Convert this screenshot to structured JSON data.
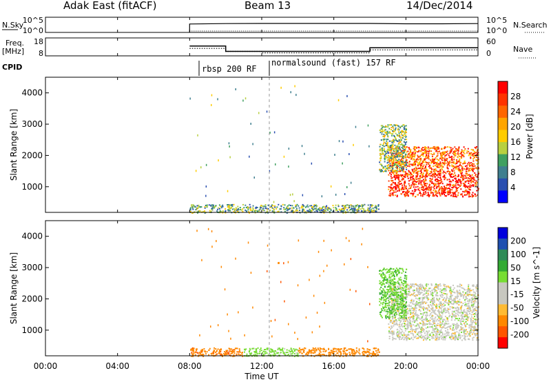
{
  "header": {
    "left_title": "Adak East (fitACF)",
    "center_title": "Beam 13",
    "right_title": "14/Dec/2014"
  },
  "panels": {
    "nsky": {
      "left_label": "N.Sky",
      "left_ticks": [
        "10^5",
        "10^0"
      ],
      "right_ticks": [
        "10^5",
        "10^0"
      ],
      "right_label": "N.Search"
    },
    "freq": {
      "left_label_line1": "Freq.",
      "left_label_line2": "[MHz]",
      "left_ticks": [
        "18",
        "8"
      ],
      "right_ticks": [
        "60",
        "0"
      ],
      "right_label": "Nave"
    },
    "cpid": {
      "label": "CPID",
      "segments": [
        "rbsp 200 RF",
        "normalsound (fast) 157 RF"
      ]
    }
  },
  "x_axis": {
    "label": "Time UT",
    "ticks": [
      "00:00",
      "04:00",
      "08:00",
      "12:00",
      "16:00",
      "20:00",
      "00:00"
    ]
  },
  "colors": {
    "velocity": [
      "#ff0000",
      "#ff5500",
      "#ff8800",
      "#ffbb33",
      "#c8c8c0",
      "#c8c8c0",
      "#77dd33",
      "#33aa33",
      "#2e8b57",
      "#1f4fb0",
      "#0000dd"
    ],
    "power": [
      "#0000ff",
      "#2a4fb0",
      "#3f7f8f",
      "#3fa060",
      "#b8d040",
      "#ffcc00",
      "#ffa500",
      "#ff6600",
      "#ff3300",
      "#ff0000"
    ]
  },
  "chart_data": [
    {
      "type": "line",
      "title": "",
      "series": [
        {
          "name": "N.Sky",
          "x": [
            8.0,
            8.0,
            10.0,
            12.0,
            14.0,
            16.0,
            18.0,
            20.0,
            22.0,
            24.0
          ],
          "values": [
            1,
            600,
            800,
            900,
            900,
            900,
            900,
            700,
            700,
            800
          ]
        },
        {
          "name": "N.Search",
          "x": [
            8.0,
            10.0,
            12.0,
            14.0,
            16.0,
            18.0,
            20.0,
            22.0,
            24.0
          ],
          "values": [
            1,
            1,
            1,
            1,
            1,
            1,
            1,
            1,
            1
          ]
        }
      ],
      "xlim": [
        0,
        24
      ],
      "ylim": [
        1,
        100000
      ]
    },
    {
      "type": "line",
      "title": "",
      "series": [
        {
          "name": "Freq.",
          "x": [
            8.0,
            10.0,
            10.0,
            18.0,
            18.0,
            24.0
          ],
          "values": [
            13.5,
            13.5,
            10.5,
            10.5,
            12.5,
            12.5
          ]
        },
        {
          "name": "Nave",
          "x": [
            8.0,
            10.0,
            10.0,
            12.0,
            12.0,
            18.0,
            18.0,
            24.0
          ],
          "values": [
            25,
            25,
            15,
            15,
            10,
            10,
            20,
            20
          ]
        }
      ],
      "xlim": [
        0,
        24
      ]
    },
    {
      "type": "heatmap",
      "title": "",
      "ylabel": "Slant Range [km]",
      "xlabel": "",
      "y_ticks": [
        "1000",
        "2000",
        "3000",
        "4000"
      ],
      "colorbar_label": "Power [dB]",
      "colorbar_ticks": [
        "4",
        "8",
        "12",
        "16",
        "20",
        "24",
        "28"
      ],
      "xlim": [
        0,
        24
      ],
      "ylim": [
        180,
        4500
      ],
      "regions": [
        {
          "x": [
            8.0,
            18.5
          ],
          "y": [
            180,
            450
          ],
          "value": 10
        },
        {
          "x": [
            19.0,
            24.0
          ],
          "y": [
            700,
            1400
          ],
          "value": 28
        },
        {
          "x": [
            19.0,
            24.0
          ],
          "y": [
            1400,
            2300
          ],
          "value": 24
        },
        {
          "x": [
            18.5,
            20.0
          ],
          "y": [
            1500,
            3000
          ],
          "value": 12
        }
      ]
    },
    {
      "type": "heatmap",
      "title": "",
      "ylabel": "Slant Range [km]",
      "xlabel": "Time UT",
      "y_ticks": [
        "1000",
        "2000",
        "3000",
        "4000"
      ],
      "colorbar_label": "Velocity [m s^-1]",
      "colorbar_ticks": [
        "200",
        "100",
        "50",
        "15",
        "-15",
        "-50",
        "-100",
        "-200"
      ],
      "xlim": [
        0,
        24
      ],
      "ylim": [
        180,
        4500
      ],
      "regions": [
        {
          "x": [
            8.0,
            11.0
          ],
          "y": [
            180,
            450
          ],
          "value": -60
        },
        {
          "x": [
            11.0,
            14.0
          ],
          "y": [
            180,
            450
          ],
          "value": 30
        },
        {
          "x": [
            14.0,
            18.5
          ],
          "y": [
            180,
            450
          ],
          "value": -50
        },
        {
          "x": [
            19.0,
            24.0
          ],
          "y": [
            700,
            2500
          ],
          "value": 0
        },
        {
          "x": [
            18.5,
            20.0
          ],
          "y": [
            1400,
            3000
          ],
          "value": 40
        }
      ]
    }
  ]
}
